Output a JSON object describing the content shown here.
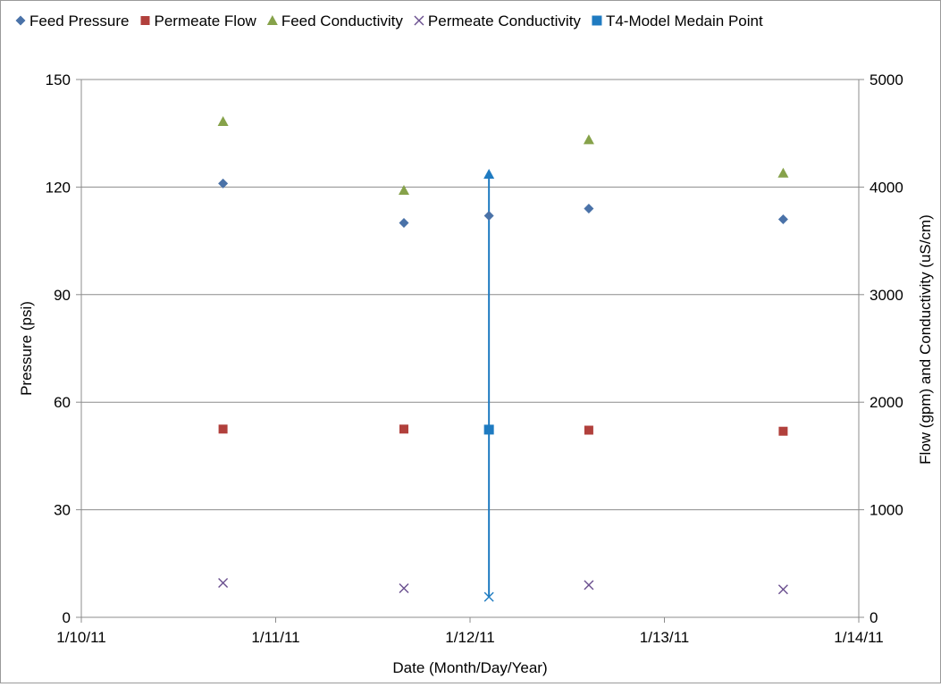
{
  "chart_data": {
    "type": "scatter",
    "title": "",
    "xlabel": "Date (Month/Day/Year)",
    "ylabel": "Pressure (psi)",
    "y2label": "Flow (gpm) and Conductivity (uS/cm)",
    "x_ticks": [
      "1/10/11",
      "1/11/11",
      "1/12/11",
      "1/13/11",
      "1/14/11"
    ],
    "y_ticks": [
      "0",
      "30",
      "60",
      "90",
      "120",
      "150"
    ],
    "y2_ticks": [
      "0",
      "1000",
      "2000",
      "3000",
      "4000",
      "5000"
    ],
    "xlim": [
      "1/10/11",
      "1/14/11"
    ],
    "ylim": [
      0,
      150
    ],
    "y2lim": [
      0,
      5000
    ],
    "grid": "horizontal",
    "legend_position": "top",
    "series": [
      {
        "name": "Feed Pressure",
        "marker": "diamond",
        "color": "#4a72a8",
        "axis": "left",
        "points": [
          [
            "1/10/11 17:30",
            121
          ],
          [
            "1/11/11 15:50",
            110
          ],
          [
            "1/12/11 02:20",
            112
          ],
          [
            "1/12/11 14:40",
            114
          ],
          [
            "1/13/11 14:40",
            111
          ]
        ]
      },
      {
        "name": "Permeate Flow",
        "marker": "square",
        "color": "#b1403c",
        "axis": "right",
        "points": [
          [
            "1/10/11 17:30",
            1750
          ],
          [
            "1/11/11 15:50",
            1750
          ],
          [
            "1/12/11 14:40",
            1740
          ],
          [
            "1/13/11 14:40",
            1730
          ]
        ]
      },
      {
        "name": "Feed Conductivity",
        "marker": "triangle",
        "color": "#86a24a",
        "axis": "right",
        "points": [
          [
            "1/10/11 17:30",
            4610
          ],
          [
            "1/11/11 15:50",
            3970
          ],
          [
            "1/12/11 14:40",
            4440
          ],
          [
            "1/13/11 14:40",
            4130
          ]
        ]
      },
      {
        "name": "Permeate Conductivity",
        "marker": "x",
        "color": "#6a4f8f",
        "axis": "right",
        "points": [
          [
            "1/10/11 17:30",
            320
          ],
          [
            "1/11/11 15:50",
            270
          ],
          [
            "1/12/11 14:40",
            300
          ],
          [
            "1/13/11 14:40",
            260
          ]
        ]
      },
      {
        "name": "T4-Model Medain Point",
        "marker": "square-blue",
        "color": "#1f7bc1",
        "axis": "right",
        "points": [
          [
            "1/12/11 02:20",
            1745
          ]
        ]
      }
    ],
    "median_line": {
      "x": "1/12/11 02:20",
      "y_top": 4120,
      "y_bottom": 190,
      "color": "#1f7bc1"
    }
  }
}
